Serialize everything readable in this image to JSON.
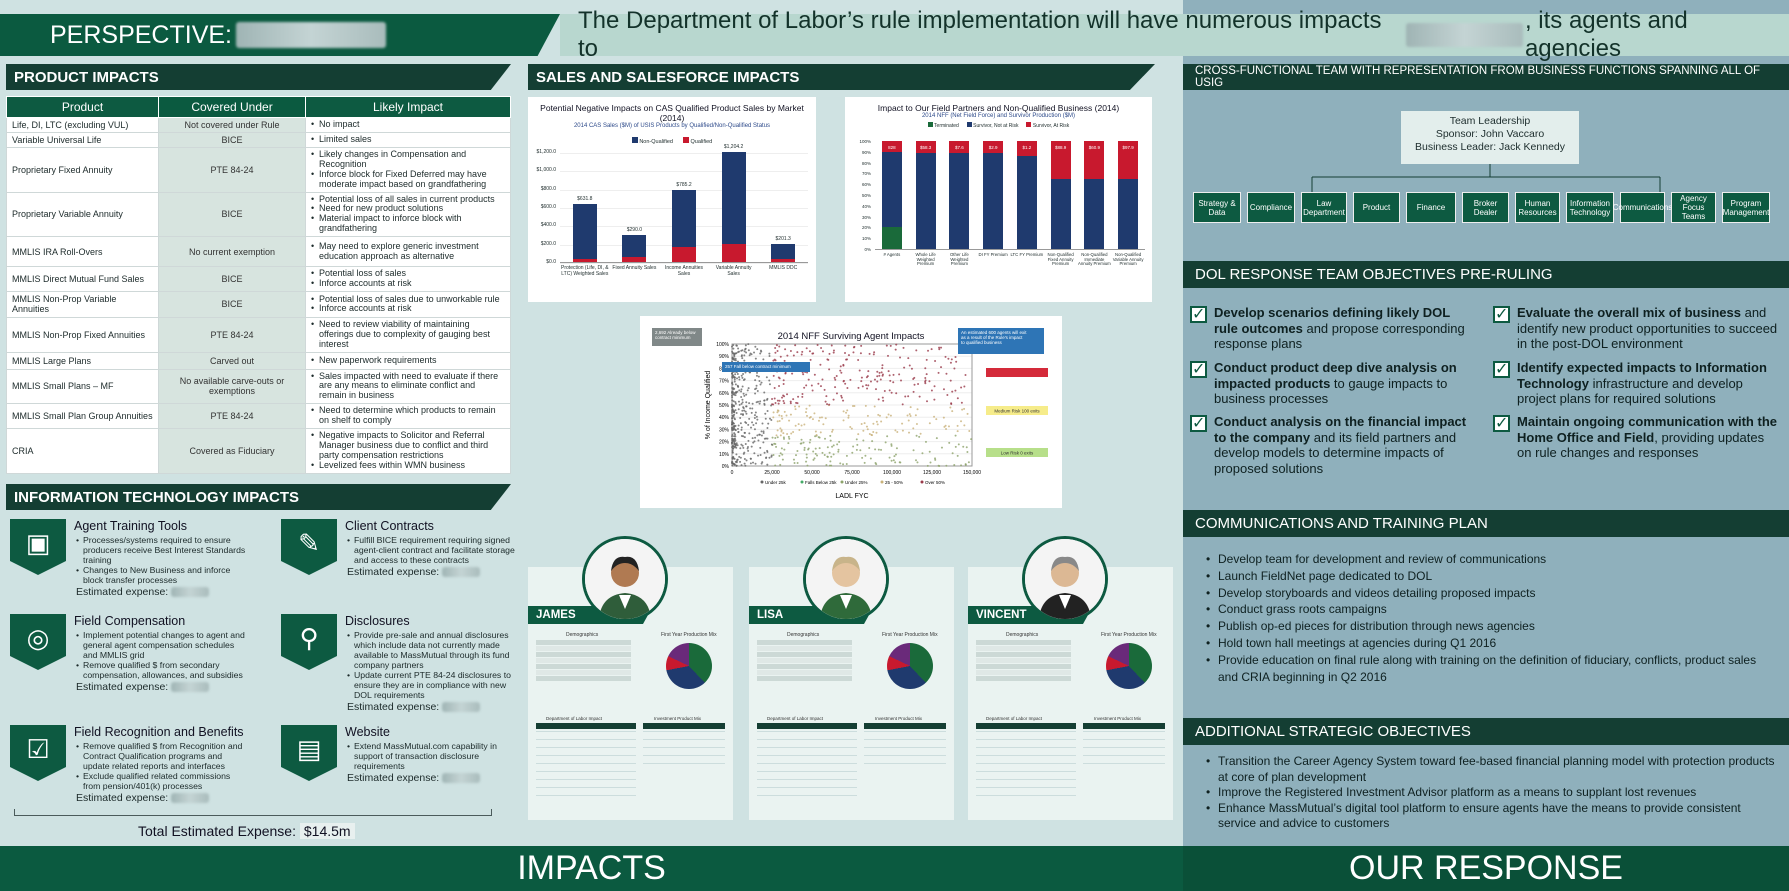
{
  "header": {
    "perspective": "PERSPECTIVE:",
    "headline_pre": "The Department of Labor’s rule implementation will have numerous impacts to",
    "headline_post": ", its agents and agencies"
  },
  "product_impacts": {
    "title": "PRODUCT IMPACTS",
    "columns": [
      "Product",
      "Covered Under",
      "Likely Impact"
    ],
    "rows": [
      {
        "product": "Life, DI, LTC (excluding VUL)",
        "covered": "Not covered under Rule",
        "impacts": [
          "No impact"
        ]
      },
      {
        "product": "Variable Universal Life",
        "covered": "BICE",
        "impacts": [
          "Limited sales"
        ]
      },
      {
        "product": "Proprietary Fixed Annuity",
        "covered": "PTE 84-24",
        "impacts": [
          "Likely changes in Compensation and Recognition",
          "Inforce block for Fixed Deferred may have moderate impact based on grandfathering"
        ]
      },
      {
        "product": "Proprietary Variable Annuity",
        "covered": "BICE",
        "impacts": [
          "Potential loss of all sales in current products",
          "Need for new product solutions",
          "Material impact to inforce block with grandfathering"
        ]
      },
      {
        "product": "MMLIS IRA Roll-Overs",
        "covered": "No current exemption",
        "impacts": [
          "May need to explore generic investment education approach as alternative"
        ]
      },
      {
        "product": "MMLIS Direct Mutual Fund Sales",
        "covered": "BICE",
        "impacts": [
          "Potential loss of sales",
          "Inforce accounts at risk"
        ]
      },
      {
        "product": "MMLIS Non-Prop Variable Annuities",
        "covered": "BICE",
        "impacts": [
          "Potential loss of sales due to unworkable rule",
          "Inforce accounts at risk"
        ]
      },
      {
        "product": "MMLIS Non-Prop Fixed Annuities",
        "covered": "PTE 84-24",
        "impacts": [
          "Need to review viability of maintaining offerings due to complexity of gauging best interest"
        ]
      },
      {
        "product": "MMLIS Large Plans",
        "covered": "Carved out",
        "impacts": [
          "New paperwork requirements"
        ]
      },
      {
        "product": "MMLIS Small Plans – MF",
        "covered": "No available carve-outs or exemptions",
        "impacts": [
          "Sales impacted with need to evaluate if there are any means to eliminate conflict and remain in business"
        ]
      },
      {
        "product": "MMLIS Small Plan Group Annuities",
        "covered": "PTE 84-24",
        "impacts": [
          "Need to determine which products to remain on shelf to comply"
        ]
      },
      {
        "product": "CRIA",
        "covered": "Covered as Fiduciary",
        "impacts": [
          "Negative impacts to Solicitor and Referral Manager business due to conflict and third party compensation restrictions",
          "Levelized fees within WMN business"
        ]
      }
    ]
  },
  "it_impacts": {
    "title": "INFORMATION TECHNOLOGY IMPACTS",
    "expense_label": "Estimated expense:",
    "items": [
      {
        "title": "Agent Training Tools",
        "icon": "presentation-icon",
        "bullets": [
          "Processes/systems required to ensure producers receive Best Interest Standards training",
          "Changes to New Business and inforce block transfer processes"
        ]
      },
      {
        "title": "Client Contracts",
        "icon": "contract-icon",
        "bullets": [
          "Fulfill BICE requirement requiring signed agent-client contract and facilitate storage and access to these contracts"
        ]
      },
      {
        "title": "Field Compensation",
        "icon": "coins-icon",
        "bullets": [
          "Implement potential changes to agent and general agent compensation schedules and MMLIS grid",
          "Remove qualified $ from secondary compensation, allowances, and subsidies"
        ]
      },
      {
        "title": "Disclosures",
        "icon": "magnifier-icon",
        "bullets": [
          "Provide pre-sale and annual disclosures which include data not currently made available to MassMutual through its fund company partners",
          "Update current PTE 84-24 disclosures to ensure they are in compliance with new DOL requirements"
        ]
      },
      {
        "title": "Field Recognition and Benefits",
        "icon": "checkbox-icon",
        "bullets": [
          "Remove qualified $ from Recognition and Contract Qualification programs and update related reports and interfaces",
          "Exclude qualified related commissions from pension/401(k) processes"
        ]
      },
      {
        "title": "Website",
        "icon": "website-icon",
        "bullets": [
          "Extend MassMutual.com capability in support of transaction disclosure requirements"
        ]
      }
    ],
    "total_label": "Total Estimated Expense:",
    "total_value": "$14.5m"
  },
  "sales": {
    "title": "SALES AND SALESFORCE IMPACTS"
  },
  "chart_data": [
    {
      "type": "bar",
      "title": "Potential Negative Impacts on CAS Qualified Product Sales by Market (2014)",
      "subtitle": "2014 CAS Sales ($M) of USIS Products by Qualified/Non-Qualified Status",
      "categories": [
        "Protection (Life, DI, & LTC) Weighted Sales",
        "Fixed Annuity Sales",
        "Income Annuities Sales",
        "Variable Annuity Sales",
        "MMLIS DDC"
      ],
      "series": [
        {
          "name": "Qualified",
          "values": [
            31.8,
            50,
            160,
            200,
            30
          ]
        },
        {
          "name": "Non-Qualified",
          "values": [
            600,
            240,
            625,
            1004,
            171
          ]
        }
      ],
      "value_labels": [
        "$631.8",
        "$290.0",
        "$785.2",
        "$1,204.2",
        "$201.3"
      ],
      "yticks": [
        "$0.0",
        "$200.0",
        "$400.0",
        "$600.0",
        "$800.0",
        "$1,000.0",
        "$1,200.0"
      ],
      "ylim": [
        0,
        1200
      ],
      "colors": {
        "Qualified": "#c8192e",
        "Non-Qualified": "#1f3a6e"
      }
    },
    {
      "type": "bar",
      "title": "Impact to Our Field Partners and Non-Qualified Business (2014)",
      "subtitle": "2014 NFF (Net Field Force) and Survivor Production ($M)",
      "categories": [
        "# Agents",
        "Whole Life Weighted Premium",
        "Other Life Weighted Premium",
        "DI FY Premium",
        "LTC FY Premium",
        "Non-Qualified Fixed Annuity Premium",
        "Non-Qualified Immediate Annuity Premium",
        "Non-Qualified Variable Annuity Premium"
      ],
      "series": [
        {
          "name": "Terminated",
          "values": [
            18,
            0,
            0,
            0,
            0,
            0,
            0,
            0
          ]
        },
        {
          "name": "Survivor, Not at Risk",
          "values": [
            63,
            80,
            80,
            80,
            75,
            55,
            55,
            55
          ]
        },
        {
          "name": "Survivor, At Risk",
          "values": [
            9,
            10,
            10,
            10,
            12,
            30,
            30,
            30
          ]
        }
      ],
      "top_labels": [
        "828",
        "$58.3",
        "$7.6",
        "$2.9",
        "$1.2",
        "$88.9",
        "$60.9",
        "$97.9"
      ],
      "yticks": [
        "0%",
        "10%",
        "20%",
        "30%",
        "40%",
        "50%",
        "60%",
        "70%",
        "80%",
        "90%",
        "100%"
      ],
      "ylim": [
        0,
        100
      ],
      "colors": {
        "Terminated": "#1a6a3a",
        "Survivor, Not at Risk": "#1f3a6e",
        "Survivor, At Risk": "#c8192e"
      }
    },
    {
      "type": "scatter",
      "title": "2014 NFF Surviving Agent Impacts",
      "xlabel": "LADL FYC",
      "ylabel": "% of Income Qualified",
      "xticks": [
        "0",
        "25,000",
        "50,000",
        "75,000",
        "100,000",
        "125,000",
        "150,000"
      ],
      "yticks": [
        "0%",
        "10%",
        "20%",
        "30%",
        "40%",
        "50%",
        "60%",
        "70%",
        "80%",
        "90%",
        "100%"
      ],
      "xlim": [
        0,
        150000
      ],
      "ylim": [
        0,
        100
      ],
      "legend": [
        "Under 25k",
        "Falls Below 25k",
        "Under 25%",
        "25 - 50%",
        "Over 50%"
      ],
      "annotations": [
        "2,692 Already below contract minimum",
        "257 Fall below contract minimum",
        "An estimated 600 agents will exit as a result of the Rule's impact to qualified business"
      ],
      "right_labels": [
        "Medium Risk 100 exits",
        "Low Risk 0 exits"
      ]
    }
  ],
  "personas": [
    {
      "name": "JAMES",
      "left": 528
    },
    {
      "name": "LISA",
      "left": 749
    },
    {
      "name": "VINCENT",
      "left": 968
    }
  ],
  "persona_labels": {
    "demographics": "Demographics",
    "production_mix": "First Year Production Mix",
    "dept_labor": "Department of Labor Impact",
    "inv_mix": "Investment Product Mix"
  },
  "cross": {
    "title": "CROSS-FUNCTIONAL TEAM WITH REPRESENTATION FROM BUSINESS FUNCTIONS SPANNING ALL OF USIG",
    "leadership": "Team Leadership",
    "sponsor": "Sponsor: John Vaccaro",
    "lead": "Business Leader: Jack Kennedy",
    "functions": [
      "Strategy & Data",
      "Compliance",
      "Law Department",
      "Product",
      "Finance",
      "Broker Dealer",
      "Human Resources",
      "Information Technology",
      "Communications",
      "Agency Focus Teams",
      "Program Management"
    ]
  },
  "dol": {
    "title": "DOL RESPONSE TEAM OBJECTIVES PRE-RULING",
    "objectives": [
      {
        "bold": "Develop scenarios defining likely DOL rule outcomes",
        "rest": " and propose corresponding response plans"
      },
      {
        "bold": "Conduct product deep dive analysis on impacted products",
        "rest": " to gauge impacts to business processes"
      },
      {
        "bold": "Conduct analysis on the financial impact to the company",
        "rest": " and its field partners and develop models to determine impacts of proposed solutions"
      },
      {
        "bold": "Evaluate the overall mix of business",
        "rest": " and identify new product opportunities to succeed in the post-DOL environment"
      },
      {
        "bold": "Identify expected impacts to Information Technology",
        "rest": " infrastructure and develop project plans for required solutions"
      },
      {
        "bold": "Maintain ongoing communication with the Home Office and Field",
        "rest": ", providing updates on rule changes and responses"
      }
    ]
  },
  "comms": {
    "title": "COMMUNICATIONS AND TRAINING PLAN",
    "items": [
      "Develop team for development and review of communications",
      "Launch FieldNet page dedicated to DOL",
      "Develop storyboards and videos detailing proposed impacts",
      "Conduct grass roots campaigns",
      "Publish op-ed pieces for distribution through news agencies",
      "Hold town hall meetings at agencies during Q1 2016",
      "Provide education on final rule along with training on the definition of fiduciary, conflicts, product sales and CRIA beginning in Q2 2016"
    ]
  },
  "additional": {
    "title": "ADDITIONAL STRATEGIC OBJECTIVES",
    "items": [
      "Transition the Career Agency System toward fee-based financial planning model with protection products at core of plan development",
      "Improve the Registered Investment Advisor platform as a means to supplant lost revenues",
      "Enhance MassMutual’s digital tool platform to ensure agents have the means to provide consistent service and advice to customers"
    ]
  },
  "footer": {
    "left": "IMPACTS",
    "right": "OUR RESPONSE"
  }
}
